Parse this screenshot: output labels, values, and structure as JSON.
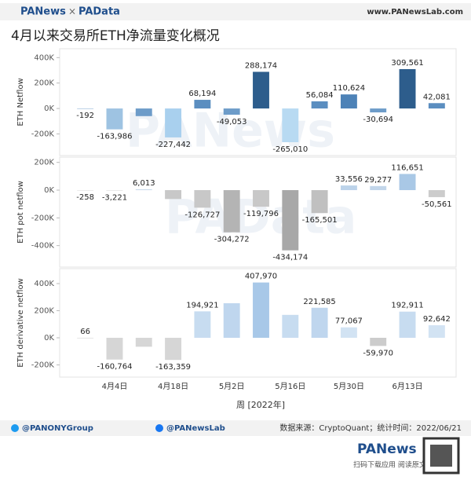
{
  "header": {
    "logo_left": "PANews",
    "times": "×",
    "logo_right": "PAData",
    "url": "www.PANewsLab.com"
  },
  "watermarks": [
    "PANews",
    "PAData"
  ],
  "chart_data": {
    "type": "bar",
    "title": "4月以来交易所ETH净流量变化概况",
    "x_label": "周 [2022年]",
    "categories": [
      null,
      "4月4日",
      null,
      "4月18日",
      null,
      "5月2日",
      null,
      "5月16日",
      null,
      "5月30日",
      null,
      "6月13日",
      null
    ],
    "panels": [
      {
        "y_label": "ETH Netflow",
        "values": [
          -192,
          -163986,
          -60000,
          -227442,
          68194,
          -49053,
          288174,
          -265010,
          56084,
          110624,
          -30694,
          309561,
          42081
        ],
        "value_labels": [
          "-192",
          "-163,986",
          null,
          "-227,442",
          "68,194",
          "-49,053",
          "288,174",
          "-265,010",
          "56,084",
          "110,624",
          "-30,694",
          "309,561",
          "42,081"
        ],
        "colors": [
          "#7fa8d0",
          "#9ec3e2",
          "#6d9cc9",
          "#a9d0ee",
          "#5b8ec0",
          "#6d9cc9",
          "#2d5d8c",
          "#b8daf2",
          "#5b8ec0",
          "#4d82b7",
          "#6d9cc9",
          "#2d5d8c",
          "#5b8ec0"
        ],
        "ylim": [
          -370000,
          470000
        ],
        "yticks": [
          {
            "value": -200000,
            "label": "-200K"
          },
          {
            "value": 0,
            "label": "0K"
          },
          {
            "value": 200000,
            "label": "200K"
          },
          {
            "value": 400000,
            "label": "400K"
          }
        ]
      },
      {
        "y_label": "ETH pot netflow",
        "values": [
          -258,
          -3221,
          6013,
          -64083,
          -126727,
          -304272,
          -119796,
          -434174,
          -165501,
          33556,
          29277,
          116651,
          -50561
        ],
        "value_labels": [
          "-258",
          "-3,221",
          "6,013",
          null,
          "-126,727",
          "-304,272",
          "-119,796",
          "-434,174",
          "-165,501",
          "33,556",
          "29,277",
          "116,651",
          "-50,561"
        ],
        "colors": [
          "#d9d9d9",
          "#d9d9d9",
          "#c9d9ea",
          "#c8c8c8",
          "#c8c8c8",
          "#b4b4b4",
          "#c8c8c8",
          "#a8a8a8",
          "#c0c0c0",
          "#bcd3ea",
          "#c2d6ea",
          "#a9c8e6",
          "#cccccc"
        ],
        "ylim": [
          -555000,
          238000
        ],
        "yticks": [
          {
            "value": -400000,
            "label": "-400K"
          },
          {
            "value": -200000,
            "label": "-200K"
          },
          {
            "value": 0,
            "label": "0K"
          },
          {
            "value": 200000,
            "label": "200K"
          }
        ]
      },
      {
        "y_label": "ETH derivative netflow",
        "values": [
          66,
          -160764,
          -66000,
          -163359,
          194921,
          255219,
          407970,
          169164,
          221585,
          77067,
          -59970,
          192911,
          92642
        ],
        "value_labels": [
          "66",
          "-160,764",
          null,
          "-163,359",
          "194,921",
          null,
          "407,970",
          null,
          "221,585",
          "77,067",
          "-59,970",
          "192,911",
          "92,642"
        ],
        "colors": [
          "#cccccc",
          "#d6d6d6",
          "#d6d6d6",
          "#d6d6d6",
          "#c7dcf0",
          "#bfd6ee",
          "#a8c8e8",
          "#c7dcf0",
          "#bfd6ee",
          "#d2e3f3",
          "#cccccc",
          "#c7dcf0",
          "#d2e3f3"
        ],
        "ylim": [
          -290000,
          510000
        ],
        "yticks": [
          {
            "value": -200000,
            "label": "-200K"
          },
          {
            "value": 0,
            "label": "0K"
          },
          {
            "value": 200000,
            "label": "200K"
          },
          {
            "value": 400000,
            "label": "400K"
          }
        ]
      }
    ]
  },
  "footer": {
    "twitter": "@PANONYGroup",
    "facebook": "@PANewsLab",
    "source": "数据来源：CryptoQuant；统计时间：2022/06/21",
    "logo": "PANews",
    "qr_caption": "扫码下载应用 阅读原文"
  }
}
